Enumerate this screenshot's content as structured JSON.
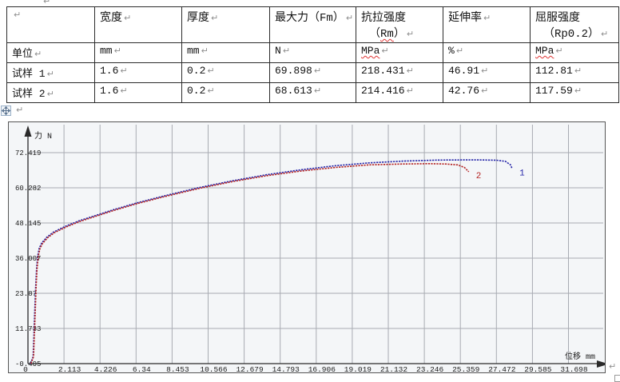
{
  "marks": {
    "cell_end": "↵"
  },
  "table": {
    "header": {
      "col0": "",
      "col1": "宽度",
      "col2": "厚度",
      "col3": "最大力（Fm）",
      "col4_line1": "抗拉强度",
      "col4_open": "（",
      "col4_term": "Rm",
      "col4_close": "）",
      "col5": "延伸率",
      "col6_line1": "屈服强度",
      "col6_line2": "（Rp0.2）"
    },
    "units": {
      "label": "单位",
      "width": "mm",
      "thickness": "mm",
      "fm": "N",
      "rm": "MPa",
      "elongation": "%",
      "rp02": "MPa"
    },
    "rows": [
      {
        "label": "试样 1",
        "width": "1.6",
        "thickness": "0.2",
        "fm": "69.898",
        "rm": "218.431",
        "elongation": "46.91",
        "rp02": "112.81"
      },
      {
        "label": "试样 2",
        "width": "1.6",
        "thickness": "0.2",
        "fm": "68.613",
        "rm": "214.416",
        "elongation": "42.76",
        "rp02": "117.59"
      }
    ]
  },
  "chart_data": {
    "type": "line",
    "title": "",
    "xlabel": "位移 mm",
    "ylabel": "力 N",
    "x_ticks": [
      0,
      2.113,
      4.226,
      6.34,
      8.453,
      10.566,
      12.679,
      14.793,
      16.906,
      19.019,
      21.132,
      23.246,
      25.359,
      27.472,
      29.585,
      31.698
    ],
    "x_tick_labels": [
      "0",
      "2.113",
      "4.226",
      "6.34",
      "8.453",
      "10.566",
      "12.679",
      "14.793",
      "16.906",
      "19.019",
      "21.132",
      "23.246",
      "25.359",
      "27.472",
      "29.585",
      "31.698"
    ],
    "y_ticks": [
      72.419,
      60.282,
      48.145,
      36.007,
      23.87,
      11.733,
      -0.405
    ],
    "y_tick_labels": [
      "72.419",
      "60.282",
      "48.145",
      "36.007",
      "23.87",
      "11.733",
      "-0.405"
    ],
    "xlim": [
      0,
      33.5
    ],
    "ylim": [
      -0.405,
      76
    ],
    "grid": true,
    "layout": {
      "grid_color": "#a8abb2",
      "axis_color": "#2a2a2a",
      "plot_bg": "#f4f6f8",
      "tick_text_color": "#1a1a1a"
    },
    "series": [
      {
        "name": "1",
        "color": "#2525a8",
        "points": [
          [
            0.15,
            -0.4
          ],
          [
            0.3,
            2
          ],
          [
            0.35,
            10
          ],
          [
            0.4,
            18
          ],
          [
            0.45,
            26
          ],
          [
            0.5,
            32
          ],
          [
            0.56,
            36.5
          ],
          [
            0.66,
            39.4
          ],
          [
            0.8,
            41.2
          ],
          [
            1.1,
            43.2
          ],
          [
            1.5,
            45
          ],
          [
            2.2,
            47
          ],
          [
            3.0,
            48.9
          ],
          [
            3.8,
            50.4
          ],
          [
            5.0,
            52.7
          ],
          [
            6.4,
            55.1
          ],
          [
            8.0,
            57.5
          ],
          [
            10.0,
            60.3
          ],
          [
            12.0,
            62.7
          ],
          [
            14.0,
            64.8
          ],
          [
            16.0,
            66.5
          ],
          [
            18.0,
            67.9
          ],
          [
            20.0,
            68.9
          ],
          [
            22.0,
            69.5
          ],
          [
            24.0,
            69.85
          ],
          [
            25.5,
            69.9
          ],
          [
            26.5,
            69.9
          ],
          [
            27.5,
            69.8
          ],
          [
            28.0,
            69.4
          ],
          [
            28.3,
            68.2
          ],
          [
            28.4,
            66.8
          ]
        ]
      },
      {
        "name": "2",
        "color": "#b42323",
        "points": [
          [
            0.18,
            -0.4
          ],
          [
            0.33,
            2
          ],
          [
            0.38,
            10
          ],
          [
            0.43,
            18
          ],
          [
            0.48,
            26
          ],
          [
            0.53,
            32
          ],
          [
            0.6,
            36.5
          ],
          [
            0.7,
            39.2
          ],
          [
            0.85,
            41
          ],
          [
            1.15,
            43
          ],
          [
            1.55,
            44.8
          ],
          [
            2.25,
            46.8
          ],
          [
            3.05,
            48.7
          ],
          [
            3.85,
            50.2
          ],
          [
            5.05,
            52.5
          ],
          [
            6.45,
            54.9
          ],
          [
            8.05,
            57.3
          ],
          [
            10.05,
            60.1
          ],
          [
            12.05,
            62.5
          ],
          [
            14.05,
            64.5
          ],
          [
            16.05,
            66.1
          ],
          [
            18.0,
            67.3
          ],
          [
            20.0,
            68.2
          ],
          [
            22.0,
            68.5
          ],
          [
            23.5,
            68.6
          ],
          [
            24.5,
            68.5
          ],
          [
            25.2,
            68.2
          ],
          [
            25.6,
            67.3
          ],
          [
            25.85,
            65.8
          ]
        ]
      }
    ]
  }
}
